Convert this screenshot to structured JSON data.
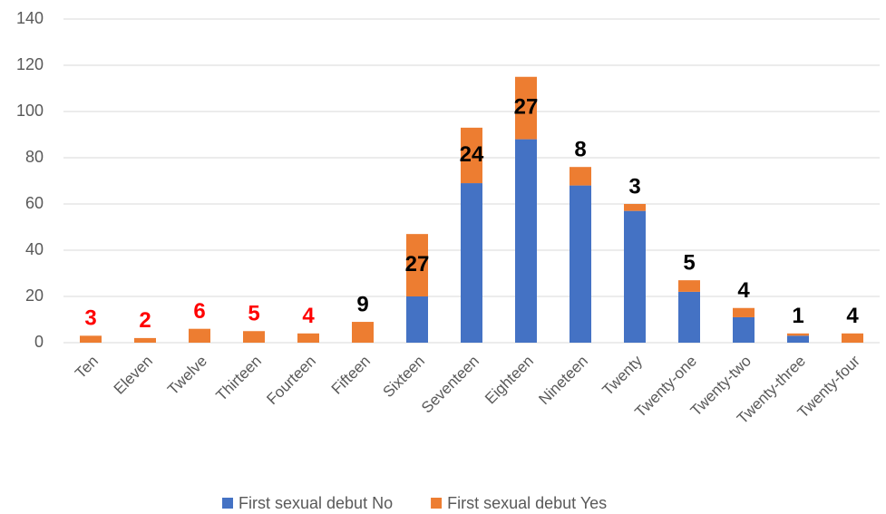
{
  "chart_data": {
    "type": "stacked_bar",
    "categories": [
      "Ten",
      "Eleven",
      "Twelve",
      "Thirteen",
      "Fourteen",
      "Fifteen",
      "Sixteen",
      "Seventeen",
      "Eighteen",
      "Nineteen",
      "Twenty",
      "Twenty-one",
      "Twenty-two",
      "Twenty-three",
      "Twenty-four"
    ],
    "series": [
      {
        "name": "First sexual debut No",
        "color": "#4472c4",
        "values": [
          0,
          0,
          0,
          0,
          0,
          0,
          20,
          69,
          88,
          68,
          57,
          22,
          11,
          3,
          0
        ]
      },
      {
        "name": "First sexual debut Yes",
        "color": "#ed7d31",
        "values": [
          3,
          2,
          6,
          5,
          4,
          9,
          27,
          24,
          27,
          8,
          3,
          5,
          4,
          1,
          4
        ],
        "data_labels": true
      }
    ],
    "label_colors": [
      "#ff0000",
      "#ff0000",
      "#ff0000",
      "#ff0000",
      "#ff0000",
      "#000000",
      "#000000",
      "#000000",
      "#000000",
      "#000000",
      "#000000",
      "#000000",
      "#000000",
      "#000000",
      "#000000"
    ],
    "ylim": [
      0,
      140
    ],
    "yticks": [
      0,
      20,
      40,
      60,
      80,
      100,
      120,
      140
    ],
    "grid": true,
    "legend": "bottom"
  }
}
